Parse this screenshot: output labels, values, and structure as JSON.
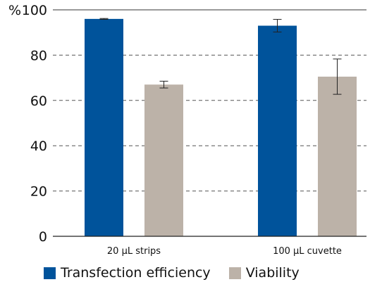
{
  "chart_data": {
    "type": "bar",
    "categories": [
      "20 µL strips",
      "100 µL cuvette"
    ],
    "series": [
      {
        "name": "Transfection efficiency",
        "color": "#00539b",
        "values": [
          96,
          93
        ],
        "errors": [
          0.2,
          2.8
        ]
      },
      {
        "name": "Viability",
        "color": "#bcb2a8",
        "values": [
          67,
          70.5
        ],
        "errors": [
          1.5,
          7.8
        ]
      }
    ],
    "ylim": [
      0,
      100
    ],
    "yticks": [
      "0",
      "20",
      "40",
      "60",
      "80",
      "100"
    ],
    "ylabel": "%",
    "grid": "dashed horizontal",
    "legend_position": "bottom"
  }
}
